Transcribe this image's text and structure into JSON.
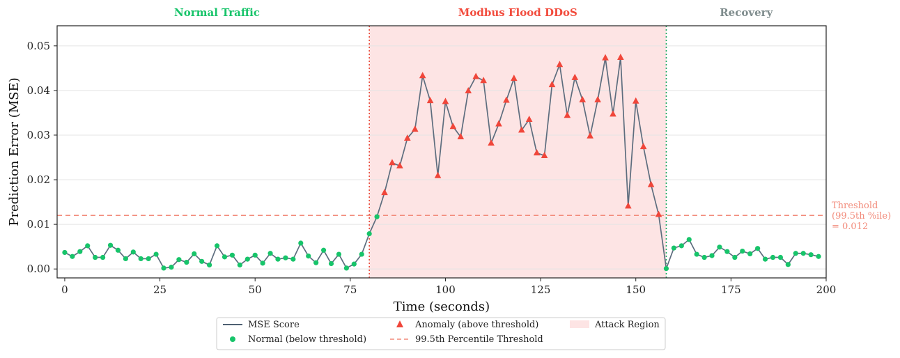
{
  "chart_data": {
    "type": "line",
    "xlabel": "Time (seconds)",
    "ylabel": "Prediction Error (MSE)",
    "xlim": [
      -2,
      200
    ],
    "ylim": [
      -0.002,
      0.0545
    ],
    "xticks": [
      0,
      25,
      50,
      75,
      100,
      125,
      150,
      175,
      200
    ],
    "xtick_labels": [
      "0",
      "25",
      "50",
      "75",
      "100",
      "125",
      "150",
      "175",
      "200"
    ],
    "yticks": [
      0,
      0.01,
      0.02,
      0.03,
      0.04,
      0.05
    ],
    "ytick_labels": [
      "0.00",
      "0.01",
      "0.02",
      "0.03",
      "0.04",
      "0.05"
    ],
    "grid": "horizontal",
    "threshold": {
      "value": 0.012,
      "label_line1": "Threshold",
      "label_line2": "(99.5th %ile)",
      "label_line3": "= 0.012",
      "color": "#f28b7b"
    },
    "attack_region": {
      "start": 80,
      "end": 158,
      "color": "#fde4e4"
    },
    "region_labels": [
      {
        "text": "Normal Traffic",
        "x": 40,
        "color": "#17c46a"
      },
      {
        "text": "Modbus Flood DDoS",
        "x": 119,
        "color": "#f24c3d"
      },
      {
        "text": "Recovery",
        "x": 179,
        "color": "#7f8c8d"
      }
    ],
    "vlines": [
      {
        "x": 80,
        "color": "#e74c3c",
        "style": "dotted"
      },
      {
        "x": 158,
        "color": "#17a85e",
        "style": "dotted"
      }
    ],
    "series": {
      "name": "MSE Score",
      "color": "#5d6d7e",
      "x": [
        0,
        2,
        4,
        6,
        8,
        10,
        12,
        14,
        16,
        18,
        20,
        22,
        24,
        26,
        28,
        30,
        32,
        34,
        36,
        38,
        40,
        42,
        44,
        46,
        48,
        50,
        52,
        54,
        56,
        58,
        60,
        62,
        64,
        66,
        68,
        70,
        72,
        74,
        76,
        78,
        80,
        82,
        84,
        86,
        88,
        90,
        92,
        94,
        96,
        98,
        100,
        102,
        104,
        106,
        108,
        110,
        112,
        114,
        116,
        118,
        120,
        122,
        124,
        126,
        128,
        130,
        132,
        134,
        136,
        138,
        140,
        142,
        144,
        146,
        148,
        150,
        152,
        154,
        156,
        158,
        160,
        162,
        164,
        166,
        168,
        170,
        172,
        174,
        176,
        178,
        180,
        182,
        184,
        186,
        188,
        190,
        192,
        194,
        196,
        198
      ],
      "y": [
        0.0037,
        0.0028,
        0.0039,
        0.0052,
        0.0026,
        0.0026,
        0.0053,
        0.0042,
        0.0023,
        0.0038,
        0.0023,
        0.0023,
        0.0033,
        0.0002,
        0.0004,
        0.0021,
        0.0015,
        0.0034,
        0.0017,
        0.0009,
        0.0052,
        0.0027,
        0.0031,
        0.0009,
        0.0022,
        0.0031,
        0.0013,
        0.0035,
        0.0022,
        0.0025,
        0.0022,
        0.0058,
        0.0029,
        0.0014,
        0.0042,
        0.0012,
        0.0033,
        0.0002,
        0.0011,
        0.0033,
        0.0079,
        0.0117,
        0.0171,
        0.0238,
        0.0231,
        0.0293,
        0.0313,
        0.0433,
        0.0377,
        0.0209,
        0.0375,
        0.0319,
        0.0296,
        0.0399,
        0.0431,
        0.0422,
        0.0282,
        0.0325,
        0.0378,
        0.0427,
        0.0311,
        0.0335,
        0.026,
        0.0254,
        0.0413,
        0.0458,
        0.0344,
        0.0429,
        0.0379,
        0.0298,
        0.0379,
        0.0473,
        0.0347,
        0.0474,
        0.0141,
        0.0376,
        0.0274,
        0.0189,
        0.0122,
        0.0001,
        0.0047,
        0.0052,
        0.0066,
        0.0033,
        0.0026,
        0.003,
        0.0049,
        0.0039,
        0.0026,
        0.004,
        0.0034,
        0.0046,
        0.0022,
        0.0026,
        0.0026,
        0.001,
        0.0035,
        0.0035,
        0.0032,
        0.0028
      ]
    },
    "normal_color": "#17c46a",
    "anomaly_color": "#f0463a",
    "legend": {
      "placement": "bottom-center",
      "items": [
        {
          "label": "MSE Score",
          "kind": "line",
          "color": "#34495e"
        },
        {
          "label": "Normal (below threshold)",
          "kind": "circle",
          "color": "#17c46a"
        },
        {
          "label": "Anomaly (above threshold)",
          "kind": "triangle",
          "color": "#f0463a"
        },
        {
          "label": "99.5th Percentile Threshold",
          "kind": "dashed",
          "color": "#f28b7b"
        },
        {
          "label": "Attack Region",
          "kind": "patch",
          "color": "#fde4e4"
        }
      ]
    }
  }
}
